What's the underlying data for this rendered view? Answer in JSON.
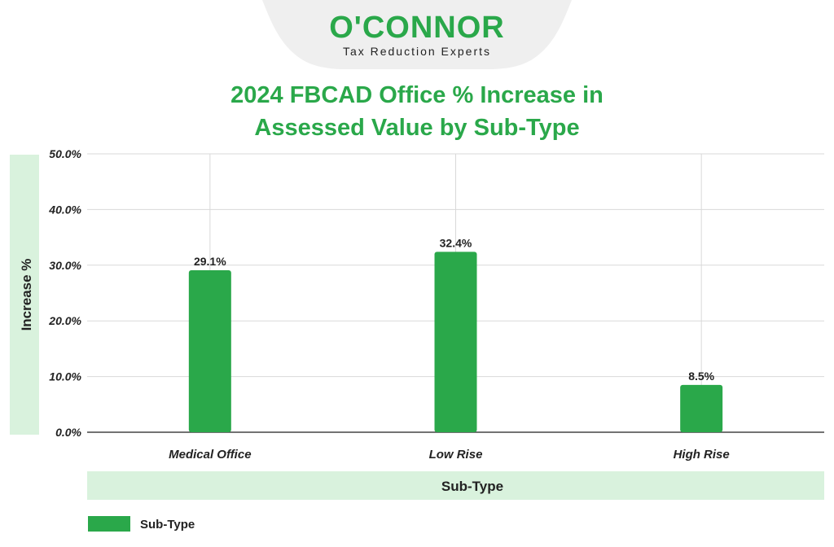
{
  "brand": {
    "logo_text": "O'CONNOR",
    "tagline": "Tax Reduction Experts",
    "color": "#2aa84a"
  },
  "colors": {
    "bar": "#2aa84a",
    "axis_band": "#d9f2dd",
    "grid": "#d9d9d9",
    "text": "#222222"
  },
  "chart_data": {
    "type": "bar",
    "title_line1": "2024 FBCAD Office % Increase in",
    "title_line2": "Assessed Value by Sub-Type",
    "xlabel": "Sub-Type",
    "ylabel": "Increase %",
    "categories": [
      "Medical Office",
      "Low Rise",
      "High Rise"
    ],
    "series": [
      {
        "name": "Sub-Type",
        "values": [
          29.1,
          32.4,
          8.5
        ]
      }
    ],
    "data_labels": [
      "29.1%",
      "32.4%",
      "8.5%"
    ],
    "yticks": [
      "0.0%",
      "10.0%",
      "20.0%",
      "30.0%",
      "40.0%",
      "50.0%"
    ],
    "ylim": [
      0,
      50
    ],
    "grid": true,
    "legend_position": "bottom-left"
  }
}
